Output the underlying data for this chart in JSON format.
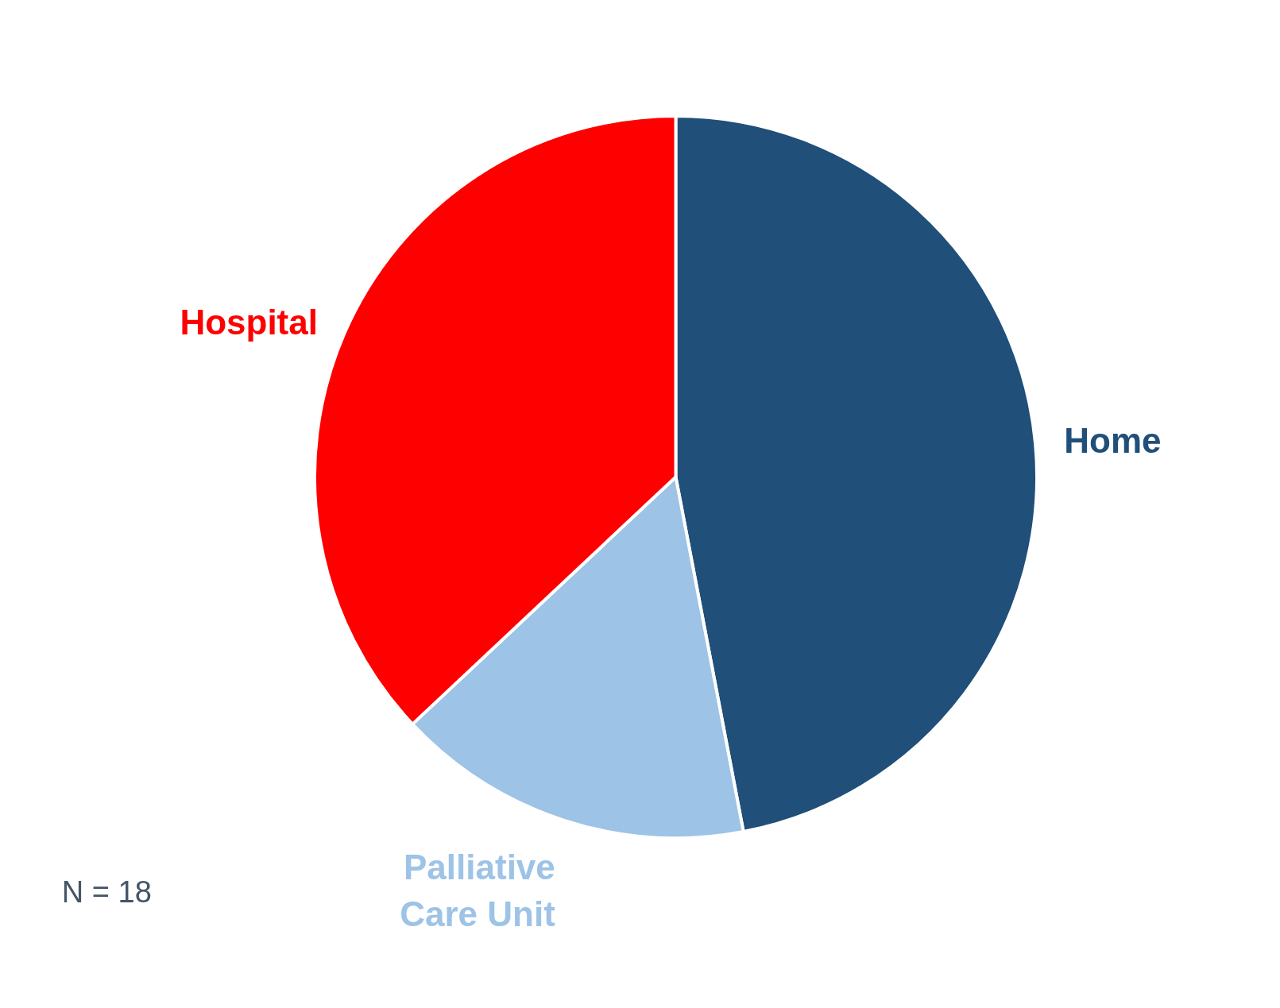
{
  "chart_data": {
    "type": "pie",
    "categories": [
      "Home",
      "Palliative Care Unit",
      "Hospital"
    ],
    "values": [
      47,
      16,
      37
    ],
    "colors": [
      "#204f79",
      "#9dc3e6",
      "#ff0000"
    ],
    "annotations": [
      "N = 18"
    ]
  }
}
